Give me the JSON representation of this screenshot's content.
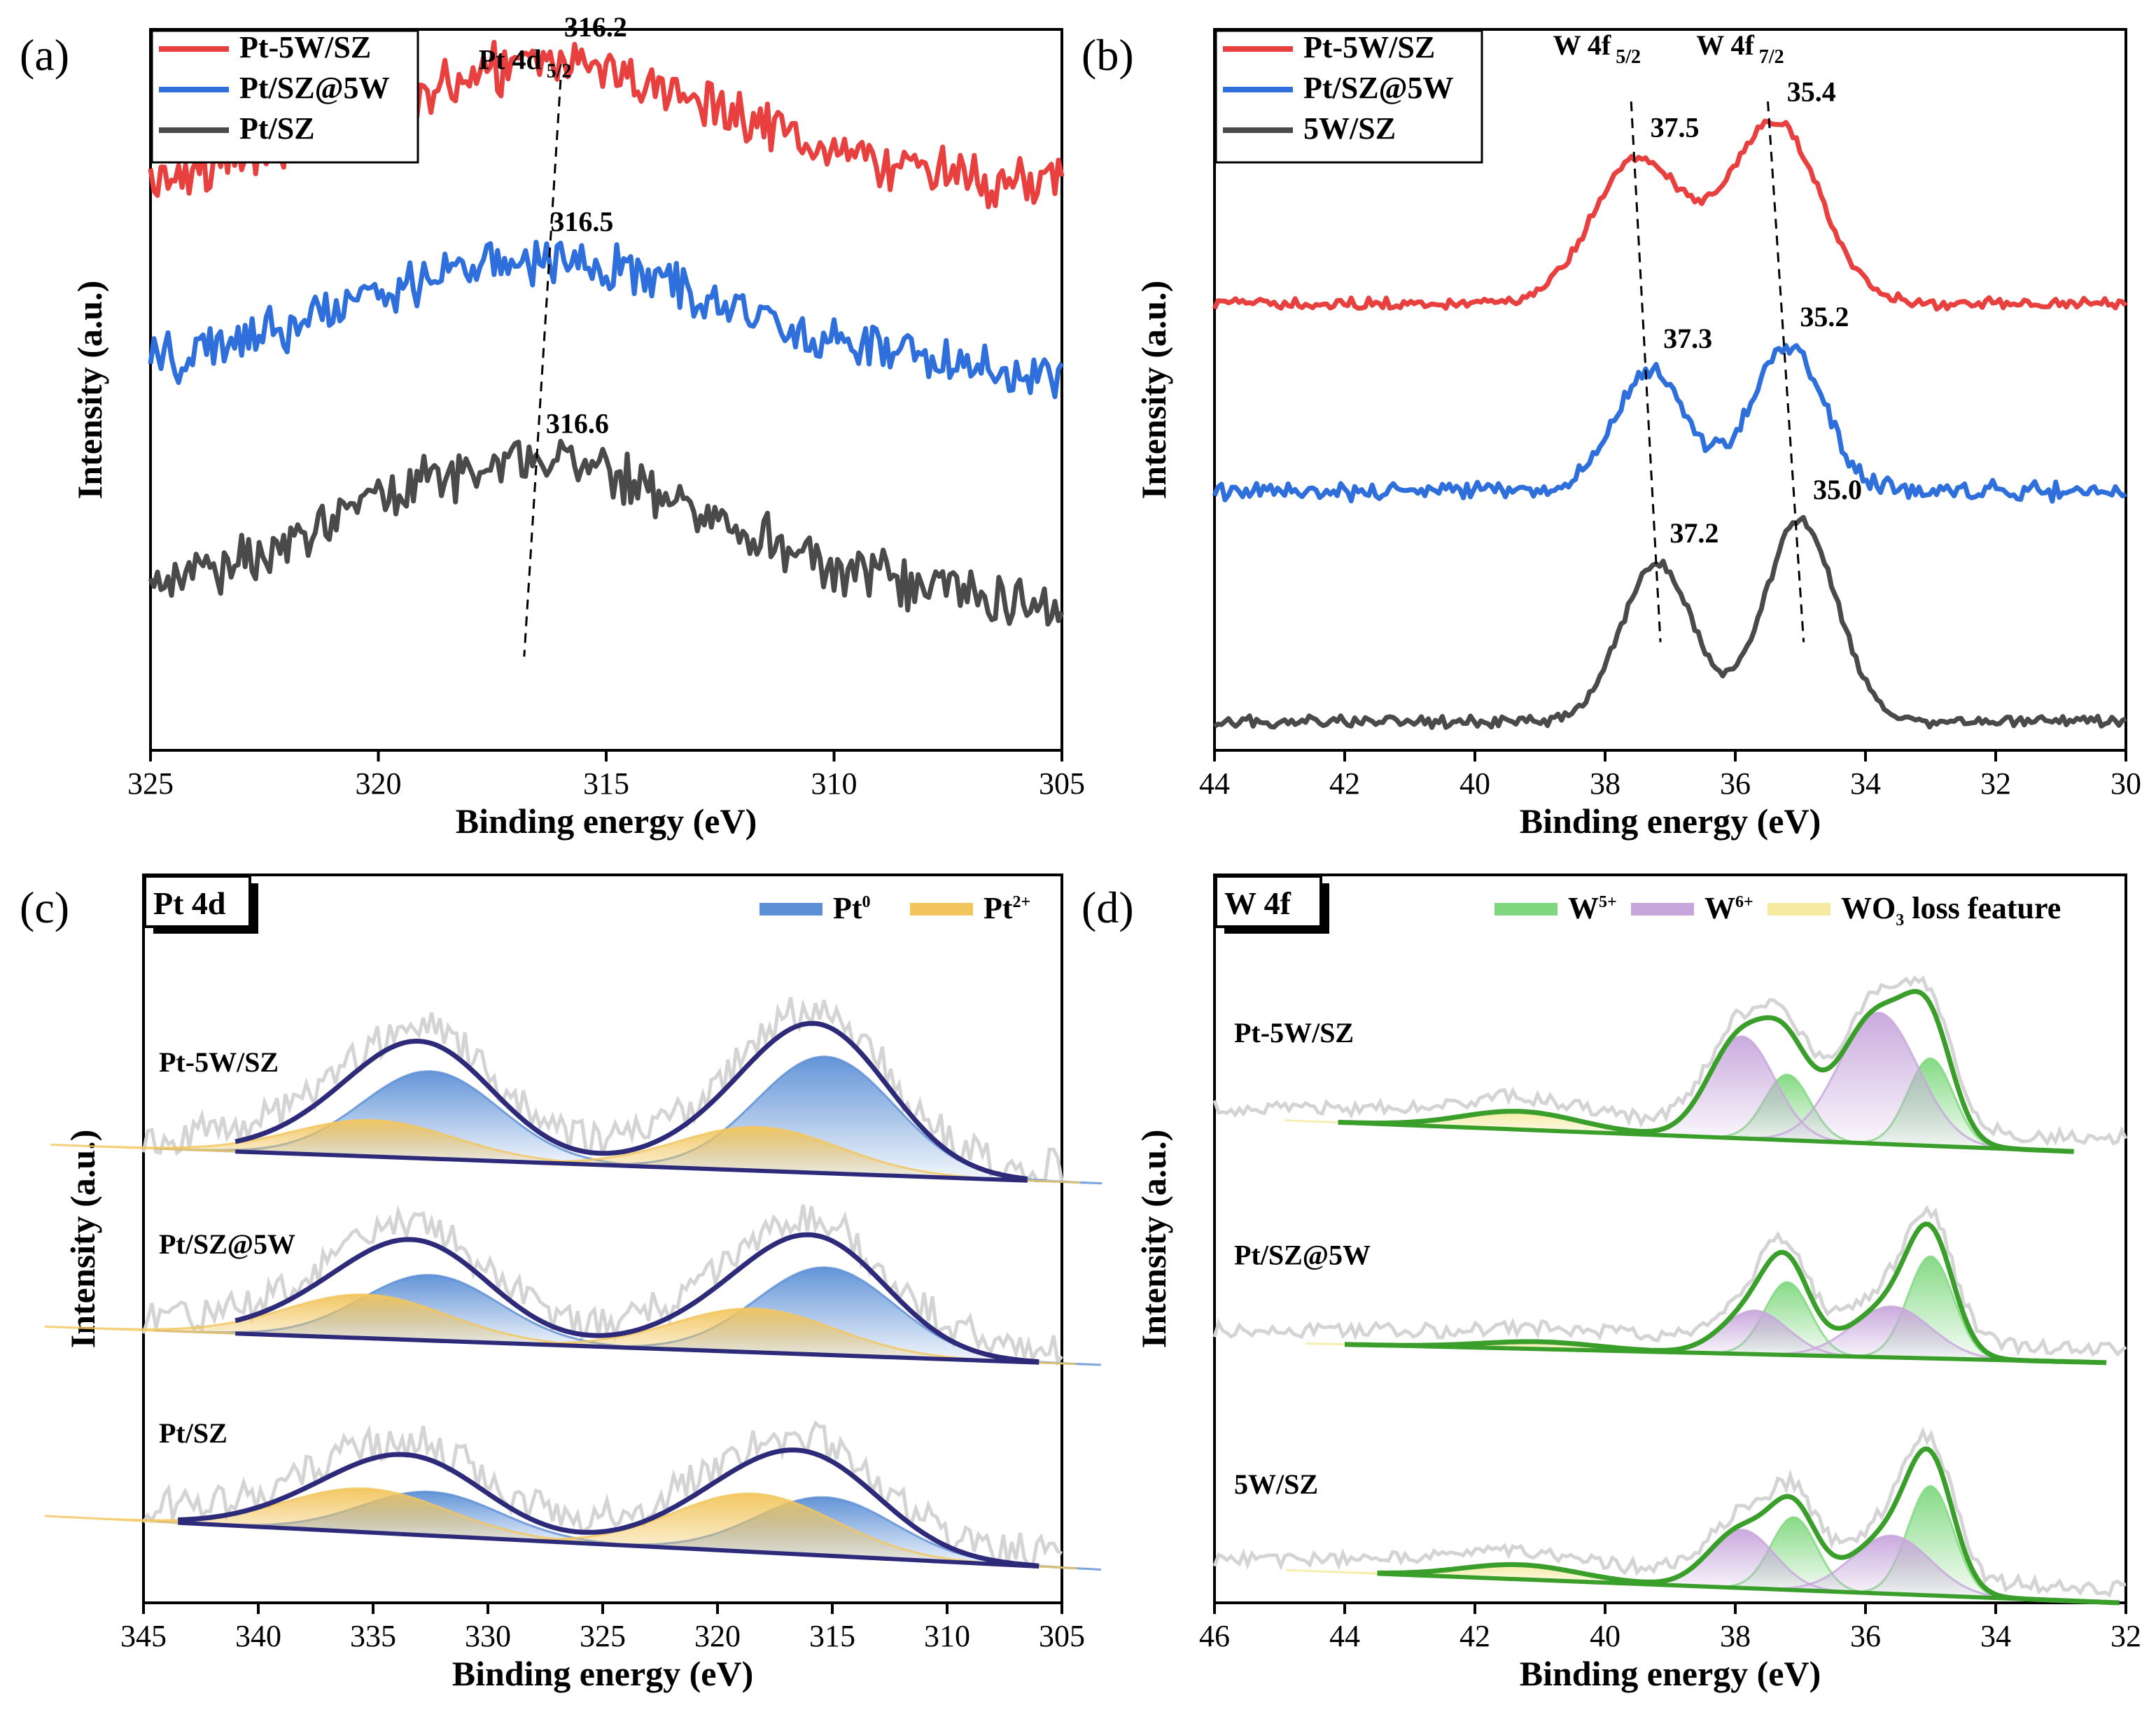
{
  "chart_data": [
    {
      "id": "a",
      "type": "line",
      "panel_label": "(a)",
      "xlabel": "Binding energy (eV)",
      "ylabel": "Intensity (a.u.)",
      "xlim": [
        325,
        305
      ],
      "xticks": [
        325,
        320,
        315,
        310,
        305
      ],
      "legend": [
        "Pt-5W/SZ",
        "Pt/SZ@5W",
        "Pt/SZ"
      ],
      "peak_label": "Pt 4d",
      "peak_label_sub": "5/2",
      "series": [
        {
          "name": "Pt-5W/SZ",
          "color": "#e8403f",
          "level": 0.78,
          "bumps": [
            {
              "pos": 316.2,
              "amp": 0.17,
              "w": 4.2
            }
          ],
          "noise": 0.028,
          "annotation": "316.2",
          "peak": 316.2
        },
        {
          "name": "Pt/SZ@5W",
          "color": "#2e6fdc",
          "level": 0.52,
          "bumps": [
            {
              "pos": 316.5,
              "amp": 0.16,
              "w": 4.2
            }
          ],
          "noise": 0.028,
          "annotation": "316.5",
          "peak": 316.5
        },
        {
          "name": "Pt/SZ",
          "color": "#4a4a4a",
          "level": 0.2,
          "bumps": [
            {
              "pos": 316.6,
              "amp": 0.2,
              "w": 4.2
            }
          ],
          "noise": 0.028,
          "annotation": "316.6",
          "peak": 316.6
        }
      ]
    },
    {
      "id": "b",
      "type": "line",
      "panel_label": "(b)",
      "xlabel": "Binding energy (eV)",
      "ylabel": "Intensity (a.u.)",
      "xlim": [
        44,
        30
      ],
      "xticks": [
        44,
        42,
        40,
        38,
        36,
        34,
        32,
        30
      ],
      "legend": [
        "Pt-5W/SZ",
        "Pt/SZ@5W",
        "5W/SZ"
      ],
      "peak_labels": [
        {
          "text": "W 4f",
          "sub": "5/2"
        },
        {
          "text": "W 4f",
          "sub": "7/2"
        }
      ],
      "series": [
        {
          "name": "Pt-5W/SZ",
          "color": "#e8403f",
          "level": 0.62,
          "bumps": [
            {
              "pos": 37.5,
              "amp": 0.2,
              "w": 0.7
            },
            {
              "pos": 35.4,
              "amp": 0.25,
              "w": 0.7
            }
          ],
          "noise": 0.006,
          "annotations": [
            "37.5",
            "35.4"
          ],
          "peaks": [
            37.5,
            35.4
          ]
        },
        {
          "name": "Pt/SZ@5W",
          "color": "#2e6fdc",
          "level": 0.36,
          "bumps": [
            {
              "pos": 37.3,
              "amp": 0.17,
              "w": 0.55
            },
            {
              "pos": 35.2,
              "amp": 0.2,
              "w": 0.55
            }
          ],
          "noise": 0.01,
          "annotations": [
            "37.3",
            "35.2"
          ],
          "peaks": [
            37.3,
            35.2
          ]
        },
        {
          "name": "5W/SZ",
          "color": "#4a4a4a",
          "level": 0.04,
          "bumps": [
            {
              "pos": 37.2,
              "amp": 0.22,
              "w": 0.55
            },
            {
              "pos": 35.0,
              "amp": 0.28,
              "w": 0.55
            }
          ],
          "noise": 0.006,
          "annotations": [
            "37.2",
            "35.0"
          ],
          "peaks": [
            37.2,
            35.0
          ]
        }
      ]
    },
    {
      "id": "c",
      "type": "area",
      "panel_label": "(c)",
      "box_label": "Pt 4d",
      "xlabel": "Binding energy (eV)",
      "ylabel": "Intensity (a.u.)",
      "xlim": [
        345,
        305
      ],
      "xticks": [
        345,
        340,
        335,
        330,
        325,
        320,
        315,
        310,
        305
      ],
      "legend": [
        {
          "name": "Pt",
          "sup": "0",
          "color": "#5b8fd6"
        },
        {
          "name": "Pt",
          "sup": "2+",
          "color": "#f2c55c"
        }
      ],
      "envelope_color": "#2e2a7a",
      "raw_color": "#d4d4d4",
      "samples": [
        {
          "name": "Pt-5W/SZ",
          "baseline": [
            0.62,
            0.58
          ],
          "fit_range": [
            341,
            306.5
          ],
          "components": [
            {
              "pos": 332.5,
              "amp": 0.12,
              "w": 3.0,
              "kind": 0
            },
            {
              "pos": 335.0,
              "amp": 0.05,
              "w": 3.5,
              "kind": 1
            },
            {
              "pos": 315.3,
              "amp": 0.16,
              "w": 3.0,
              "kind": 0
            },
            {
              "pos": 318.2,
              "amp": 0.06,
              "w": 3.5,
              "kind": 1
            }
          ]
        },
        {
          "name": "Pt/SZ@5W",
          "baseline": [
            0.37,
            0.33
          ],
          "fit_range": [
            341,
            306
          ],
          "components": [
            {
              "pos": 332.5,
              "amp": 0.09,
              "w": 3.0,
              "kind": 0
            },
            {
              "pos": 335.3,
              "amp": 0.06,
              "w": 3.5,
              "kind": 1
            },
            {
              "pos": 315.3,
              "amp": 0.12,
              "w": 3.0,
              "kind": 0
            },
            {
              "pos": 318.4,
              "amp": 0.06,
              "w": 3.5,
              "kind": 1
            }
          ]
        },
        {
          "name": "Pt/SZ",
          "baseline": [
            0.11,
            0.05
          ],
          "fit_range": [
            343.5,
            306
          ],
          "components": [
            {
              "pos": 332.5,
              "amp": 0.06,
              "w": 3.0,
              "kind": 0
            },
            {
              "pos": 335.3,
              "amp": 0.06,
              "w": 3.5,
              "kind": 1
            },
            {
              "pos": 315.3,
              "amp": 0.08,
              "w": 3.0,
              "kind": 0
            },
            {
              "pos": 318.4,
              "amp": 0.08,
              "w": 3.5,
              "kind": 1
            }
          ]
        }
      ]
    },
    {
      "id": "d",
      "type": "area",
      "panel_label": "(d)",
      "box_label": "W 4f",
      "xlabel": "Binding energy (eV)",
      "ylabel": "Intensity (a.u.)",
      "xlim": [
        46,
        32
      ],
      "xticks": [
        46,
        44,
        42,
        40,
        38,
        36,
        34,
        32
      ],
      "legend": [
        {
          "name": "W",
          "sup": "5+",
          "color": "#7fd87f"
        },
        {
          "name": "W",
          "sup": "6+",
          "color": "#c7a6dc"
        },
        {
          "name": "WO",
          "sub": "3",
          "tail": " loss feature",
          "color": "#f5eaa0"
        }
      ],
      "envelope_color": "#3a9e2a",
      "raw_color": "#d4d4d4",
      "samples": [
        {
          "name": "Pt-5W/SZ",
          "baseline": [
            0.66,
            0.62
          ],
          "fit_range": [
            44.1,
            32.8
          ],
          "components": [
            {
              "pos": 37.2,
              "amp": 0.09,
              "w": 0.35,
              "kind": 0
            },
            {
              "pos": 35.0,
              "amp": 0.12,
              "w": 0.35,
              "kind": 0
            },
            {
              "pos": 37.9,
              "amp": 0.14,
              "w": 0.5,
              "kind": 1
            },
            {
              "pos": 35.8,
              "amp": 0.18,
              "w": 0.6,
              "kind": 1
            },
            {
              "pos": 41.3,
              "amp": 0.025,
              "w": 0.9,
              "kind": 2
            }
          ]
        },
        {
          "name": "Pt/SZ@5W",
          "baseline": [
            0.355,
            0.33
          ],
          "fit_range": [
            44.0,
            32.3
          ],
          "components": [
            {
              "pos": 37.2,
              "amp": 0.1,
              "w": 0.35,
              "kind": 0
            },
            {
              "pos": 35.0,
              "amp": 0.14,
              "w": 0.35,
              "kind": 0
            },
            {
              "pos": 37.7,
              "amp": 0.06,
              "w": 0.5,
              "kind": 1
            },
            {
              "pos": 35.6,
              "amp": 0.07,
              "w": 0.6,
              "kind": 1
            },
            {
              "pos": 41.0,
              "amp": 0.01,
              "w": 0.9,
              "kind": 2
            }
          ]
        },
        {
          "name": "5W/SZ",
          "baseline": [
            0.04,
            0.0
          ],
          "fit_range": [
            43.5,
            32.1
          ],
          "components": [
            {
              "pos": 37.1,
              "amp": 0.1,
              "w": 0.35,
              "kind": 0
            },
            {
              "pos": 35.0,
              "amp": 0.15,
              "w": 0.35,
              "kind": 0
            },
            {
              "pos": 37.9,
              "amp": 0.08,
              "w": 0.5,
              "kind": 1
            },
            {
              "pos": 35.6,
              "amp": 0.08,
              "w": 0.6,
              "kind": 1
            },
            {
              "pos": 41.3,
              "amp": 0.02,
              "w": 0.9,
              "kind": 2
            }
          ]
        }
      ]
    }
  ]
}
